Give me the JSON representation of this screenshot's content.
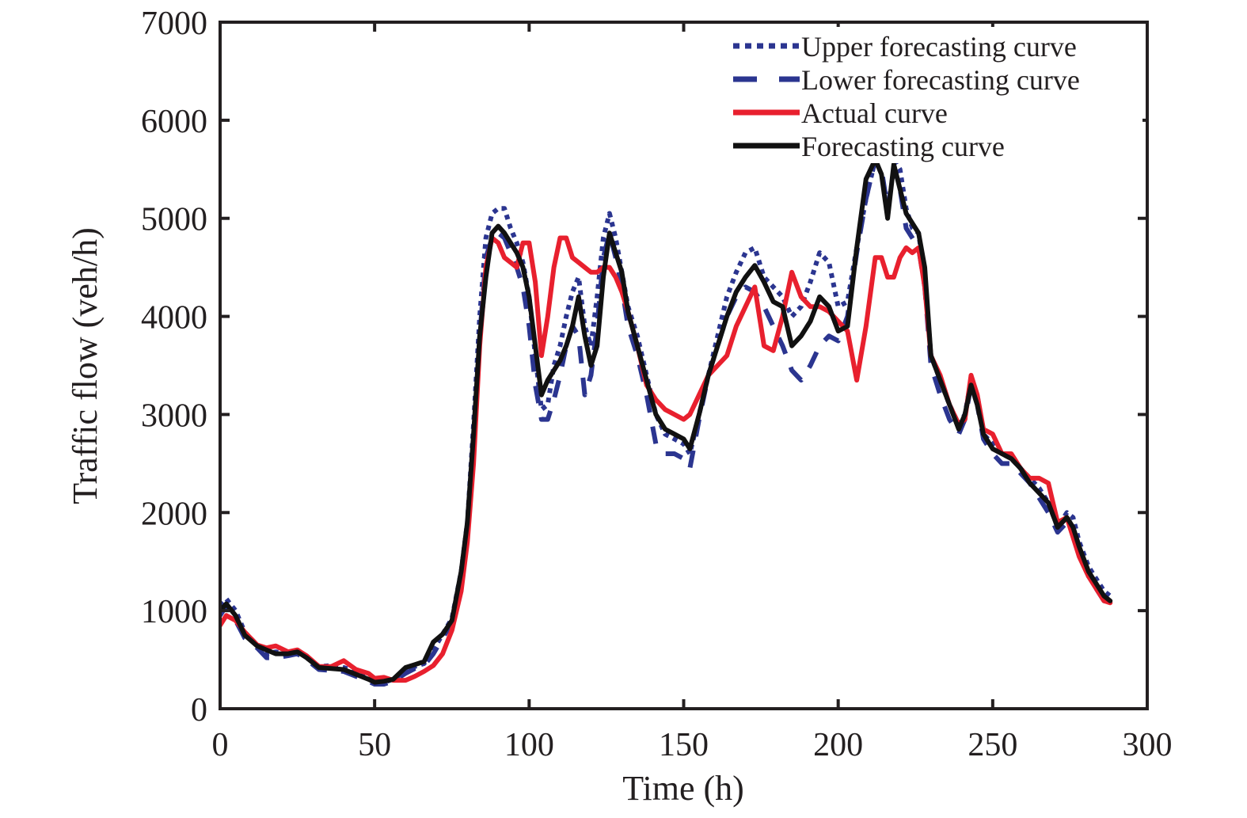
{
  "chart_data": {
    "type": "line",
    "title": "",
    "xlabel": "Time (h)",
    "ylabel": "Traffic flow (veh/h)",
    "xlim": [
      0,
      300
    ],
    "ylim": [
      0,
      7000
    ],
    "xticks": [
      0,
      50,
      100,
      150,
      200,
      250,
      300
    ],
    "yticks": [
      0,
      1000,
      2000,
      3000,
      4000,
      5000,
      6000,
      7000
    ],
    "xtick_labels": [
      "0",
      "50",
      "100",
      "150",
      "200",
      "250",
      "300"
    ],
    "ytick_labels": [
      "0",
      "1000",
      "2000",
      "3000",
      "4000",
      "5000",
      "6000",
      "7000"
    ],
    "grid": false,
    "legend_position": "top-right",
    "x": [
      0,
      2,
      5,
      8,
      12,
      15,
      18,
      22,
      25,
      28,
      32,
      36,
      40,
      44,
      48,
      50,
      53,
      56,
      60,
      63,
      66,
      69,
      72,
      75,
      78,
      80,
      82,
      84,
      86,
      88,
      90,
      92,
      94,
      96,
      98,
      100,
      102,
      104,
      106,
      108,
      110,
      112,
      114,
      116,
      118,
      120,
      122,
      124,
      126,
      128,
      130,
      132,
      135,
      138,
      141,
      144,
      147,
      150,
      152,
      155,
      158,
      161,
      164,
      167,
      170,
      173,
      176,
      179,
      182,
      185,
      188,
      191,
      194,
      197,
      200,
      203,
      206,
      209,
      212,
      214,
      216,
      218,
      220,
      222,
      224,
      226,
      228,
      230,
      233,
      236,
      239,
      241,
      243,
      245,
      247,
      250,
      253,
      256,
      259,
      262,
      265,
      268,
      271,
      274,
      276,
      278,
      281,
      284,
      286,
      288
    ],
    "series": [
      {
        "name": "Upper forecasting curve",
        "color": "#2b3590",
        "style": "dotted",
        "values": [
          1050,
          1120,
          1000,
          780,
          650,
          560,
          580,
          560,
          600,
          520,
          430,
          440,
          420,
          380,
          330,
          290,
          270,
          300,
          380,
          430,
          460,
          600,
          760,
          920,
          1400,
          1900,
          2900,
          4000,
          4800,
          5050,
          5100,
          5100,
          4900,
          4750,
          4550,
          4200,
          3600,
          3050,
          3100,
          3500,
          3700,
          4000,
          4250,
          4400,
          3900,
          3700,
          4200,
          4800,
          5050,
          4800,
          4450,
          4100,
          3800,
          3400,
          3000,
          2800,
          2750,
          2700,
          2600,
          3000,
          3400,
          3800,
          4200,
          4450,
          4650,
          4700,
          4400,
          4300,
          4200,
          4000,
          4100,
          4350,
          4650,
          4550,
          4100,
          4150,
          4700,
          5200,
          5600,
          5600,
          5600,
          5600,
          5500,
          5100,
          4900,
          4850,
          4400,
          3600,
          3350,
          3100,
          2900,
          3000,
          3350,
          3200,
          2800,
          2700,
          2600,
          2550,
          2450,
          2350,
          2250,
          2100,
          1850,
          2000,
          1950,
          1700,
          1450,
          1300,
          1200,
          1150
        ]
      },
      {
        "name": "Lower forecasting curve",
        "color": "#2b3590",
        "style": "dashed",
        "values": [
          950,
          1050,
          900,
          720,
          620,
          520,
          520,
          540,
          560,
          500,
          400,
          390,
          380,
          330,
          280,
          250,
          250,
          280,
          360,
          410,
          440,
          560,
          720,
          880,
          1300,
          1800,
          2700,
          3800,
          4600,
          4800,
          4850,
          4800,
          4650,
          4500,
          4300,
          3900,
          3300,
          2950,
          2950,
          3150,
          3400,
          3700,
          3900,
          3800,
          3200,
          3400,
          3900,
          4600,
          4850,
          4600,
          4300,
          3900,
          3600,
          3200,
          2700,
          2600,
          2600,
          2550,
          2450,
          2950,
          3400,
          3700,
          4000,
          4200,
          4300,
          4250,
          4100,
          3900,
          3700,
          3450,
          3350,
          3500,
          3700,
          3800,
          3750,
          4000,
          4650,
          5200,
          5600,
          5500,
          5100,
          5500,
          5300,
          4900,
          4800,
          4700,
          4300,
          3500,
          3200,
          2950,
          2800,
          2950,
          3300,
          3100,
          2750,
          2600,
          2500,
          2500,
          2400,
          2300,
          2150,
          2000,
          1800,
          1900,
          1850,
          1650,
          1350,
          1200,
          1100,
          1100
        ]
      },
      {
        "name": "Actual curve",
        "color": "#e8202e",
        "style": "solid",
        "values": [
          850,
          950,
          900,
          780,
          650,
          620,
          640,
          580,
          600,
          540,
          430,
          430,
          490,
          400,
          360,
          310,
          320,
          290,
          290,
          330,
          380,
          440,
          560,
          800,
          1200,
          1700,
          2500,
          3700,
          4500,
          4800,
          4750,
          4600,
          4550,
          4500,
          4750,
          4750,
          4350,
          3600,
          4000,
          4500,
          4800,
          4800,
          4600,
          4550,
          4500,
          4450,
          4450,
          4500,
          4500,
          4400,
          4250,
          4050,
          3700,
          3300,
          3150,
          3050,
          3000,
          2950,
          3000,
          3200,
          3400,
          3500,
          3600,
          3900,
          4100,
          4300,
          3700,
          3650,
          4000,
          4450,
          4200,
          4100,
          4100,
          4050,
          3950,
          3850,
          3350,
          3900,
          4600,
          4600,
          4400,
          4400,
          4600,
          4700,
          4650,
          4700,
          4300,
          3600,
          3400,
          3100,
          2900,
          2950,
          3400,
          3200,
          2850,
          2800,
          2600,
          2600,
          2450,
          2350,
          2350,
          2300,
          1900,
          1950,
          1750,
          1550,
          1350,
          1200,
          1100,
          1080
        ]
      },
      {
        "name": "Forecasting curve",
        "color": "#111111",
        "style": "solid",
        "values": [
          1000,
          1070,
          950,
          750,
          640,
          600,
          560,
          560,
          580,
          520,
          420,
          410,
          400,
          350,
          300,
          270,
          280,
          300,
          420,
          450,
          480,
          680,
          760,
          900,
          1400,
          1900,
          2800,
          3800,
          4400,
          4850,
          4920,
          4850,
          4750,
          4650,
          4500,
          4200,
          3700,
          3200,
          3350,
          3450,
          3550,
          3700,
          3900,
          4200,
          3800,
          3500,
          3700,
          4400,
          4850,
          4650,
          4450,
          4050,
          3700,
          3350,
          3000,
          2850,
          2800,
          2750,
          2650,
          3000,
          3400,
          3700,
          4000,
          4250,
          4400,
          4520,
          4350,
          4150,
          4100,
          3700,
          3800,
          3950,
          4200,
          4100,
          3850,
          3900,
          4700,
          5400,
          5600,
          5450,
          5000,
          5550,
          5300,
          5050,
          4950,
          4850,
          4500,
          3600,
          3350,
          3100,
          2850,
          3000,
          3300,
          3100,
          2800,
          2650,
          2600,
          2550,
          2450,
          2300,
          2200,
          2100,
          1850,
          1950,
          1850,
          1650,
          1400,
          1250,
          1150,
          1100
        ]
      }
    ]
  },
  "legend": {
    "items": [
      {
        "label": "Upper forecasting curve",
        "color": "#2b3590",
        "style": "dotted"
      },
      {
        "label": "Lower forecasting curve",
        "color": "#2b3590",
        "style": "dashed"
      },
      {
        "label": "Actual curve",
        "color": "#e8202e",
        "style": "solid"
      },
      {
        "label": "Forecasting curve",
        "color": "#111111",
        "style": "solid"
      }
    ]
  }
}
